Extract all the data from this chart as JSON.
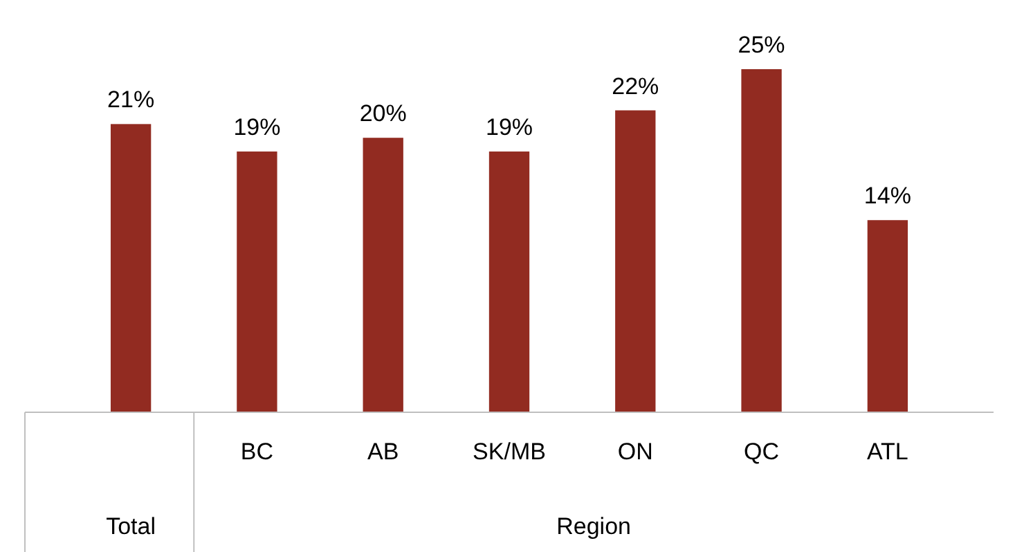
{
  "chart_data": {
    "type": "bar",
    "categories": [
      null,
      "BC",
      "AB",
      "SK/MB",
      "ON",
      "QC",
      "ATL"
    ],
    "values": [
      21,
      19,
      20,
      19,
      22,
      25,
      14
    ],
    "value_labels": [
      "21%",
      "19%",
      "20%",
      "19%",
      "22%",
      "25%",
      "14%"
    ],
    "color": "#922b21",
    "xlabel": "Region",
    "annotations": [
      "Total"
    ]
  }
}
